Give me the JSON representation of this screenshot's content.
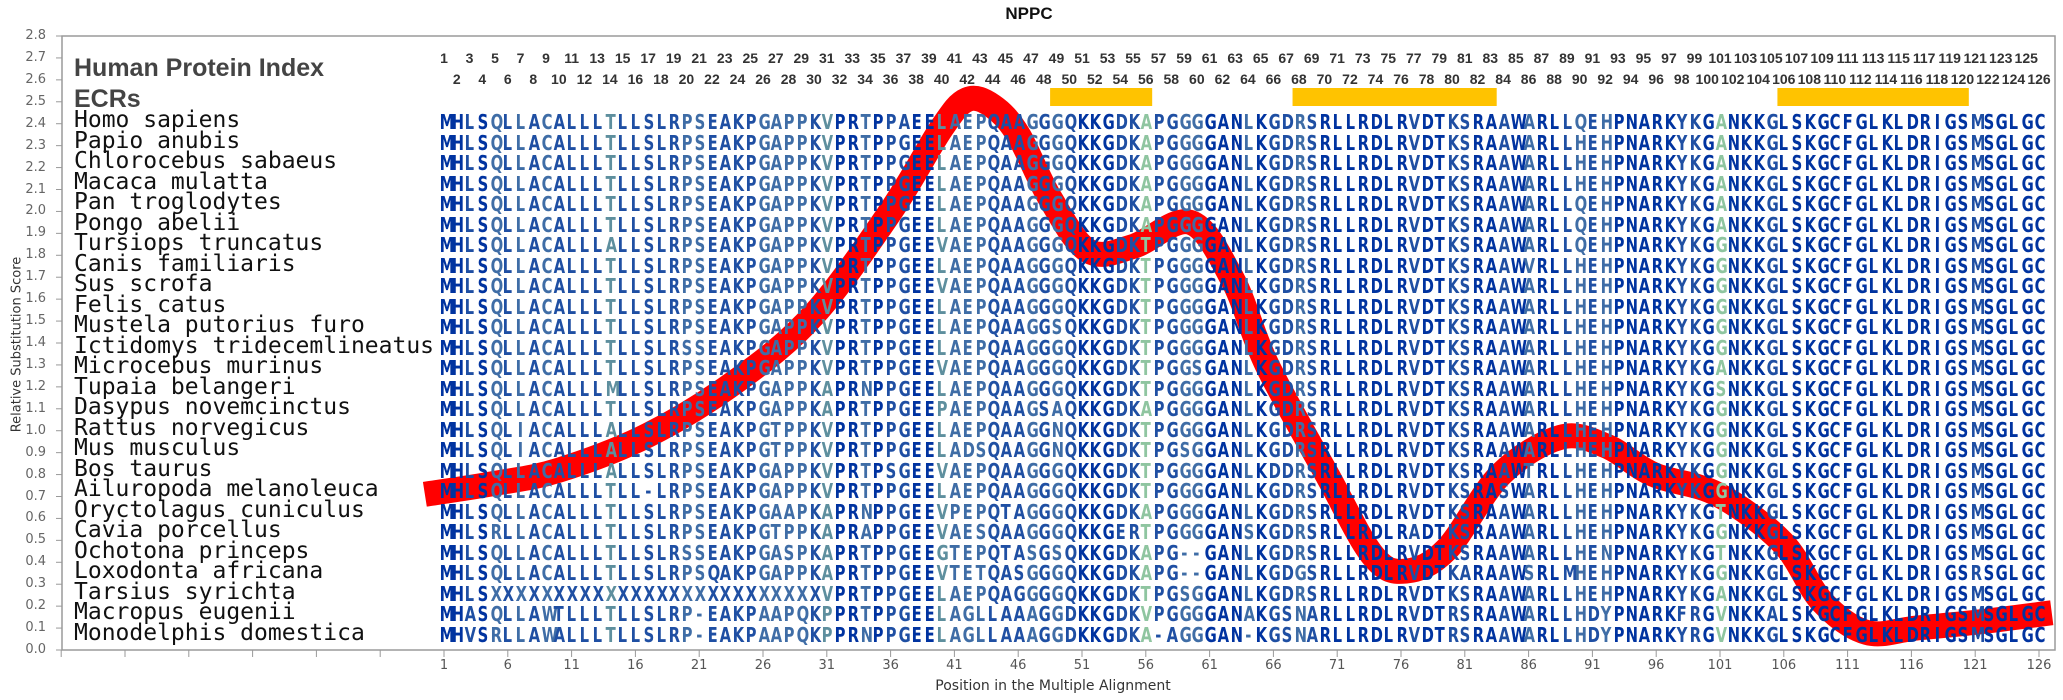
{
  "title": "NPPC",
  "header": {
    "protein_index_label": "Human Protein Index",
    "ecrs_label": "ECRs",
    "protein_index": [
      1,
      2,
      3,
      4,
      5,
      6,
      7,
      8,
      9,
      10,
      11,
      12,
      13,
      14,
      15,
      16,
      17,
      18,
      19,
      20,
      21,
      22,
      23,
      24,
      25,
      26,
      27,
      28,
      29,
      30,
      31,
      32,
      33,
      34,
      35,
      36,
      37,
      38,
      39,
      40,
      41,
      42,
      43,
      44,
      45,
      46,
      47,
      48,
      49,
      50,
      51,
      52,
      53,
      54,
      55,
      56,
      57,
      58,
      59,
      60,
      61,
      62,
      63,
      64,
      65,
      66,
      67,
      68,
      69,
      70,
      71,
      72,
      73,
      74,
      75,
      76,
      77,
      78,
      79,
      80,
      81,
      82,
      83,
      84,
      85,
      86,
      87,
      88,
      89,
      90,
      91,
      92,
      93,
      94,
      95,
      96,
      97,
      98,
      99,
      100,
      101,
      102,
      103,
      104,
      105,
      106,
      107,
      108,
      109,
      110,
      111,
      112,
      113,
      114,
      115,
      116,
      117,
      118,
      119,
      120,
      121,
      122,
      123,
      124,
      125,
      126
    ]
  },
  "ecrs": [
    {
      "start": 49,
      "end": 56
    },
    {
      "start": 68,
      "end": 83
    },
    {
      "start": 106,
      "end": 120
    }
  ],
  "colors": {
    "ecr": "#ffc300",
    "curve": "#ff0000",
    "conservation": [
      "#0033a0",
      "#1f4fa3",
      "#3f6da6",
      "#5e8f9e",
      "#8fc5a0"
    ]
  },
  "alignment": {
    "species": [
      {
        "name": "Homo sapiens",
        "sequence": "MHLSQLLACALLLTLLSLRPSEAKPGAPPKVPRTPPAEELAEPQAAGGGQKKGDKAPGGGGANLKGDRSRLLRDLRVDTKSRAAWARLLQEHPNARKYKGANKKGLSKGCFGLKLDRIGSMSGLGC"
      },
      {
        "name": "Papio anubis",
        "sequence": "MHLSQLLACALLLTLLSLRPSEAKPGAPPKVPRTPPGEELAEPQAAGGGQKKGDKAPGGGGANLKGDRSRLLRDLRVDTKSRAAWARLLHEHPNARKYKGANKKGLSKGCFGLKLDRIGSMSGLGC"
      },
      {
        "name": "Chlorocebus sabaeus",
        "sequence": "MHLSQLLACALLLTLLSLRPSEAKPGAPPKVPRTPPGEELAEPQAAGGGQKKGDKAPGGGGANLKGDRSRLLRDLRVDTKSRAAWARLLHEHPNARKYKGANKKGLSKGCFGLKLDRIGSMSGLGC"
      },
      {
        "name": "Macaca mulatta",
        "sequence": "MHLSQLLACALLLTLLSLRPSEAKPGAPPKVPRTPPGEELAEPQAAGGGQKKGDKAPGGGGANLKGDRSRLLRDLRVDTKSRAAWARLLHEHPNARKYKGANKKGLSKGCFGLKLDRIGSMSGLGC"
      },
      {
        "name": "Pan troglodytes",
        "sequence": "MHLSQLLACALLLTLLSLRPSEAKPGAPPKVPRTPPGEELAEPQAAGGGQKKGDKAPGGGGANLKGDRSRLLRDLRVDTKSRAAWARLLQEHPNARKYKGANKKGLSKGCFGLKLDRIGSMSGLGC"
      },
      {
        "name": "Pongo abelii",
        "sequence": "MHLSQLLACALLLTLLSLRPSEAKPGAPPKVPRTPPGEELAEPQAAGGGQKKGDKAPGGGGANLKGDRSRLLRDLRVDTKSRAAWARLLQEHPNARKYKGANKKGLSKGCFGLKLDRIGSMSGLGC"
      },
      {
        "name": "Tursiops truncatus",
        "sequence": "MHLSQLLACALLLALLSLRPSEAKPGAPPKVPRTPPGEEVAEPQAAGGGQKKGDKTPGGGGANLKGDRSRLLRDLRVDTKSRAAWARLLQEHPNARKYKGGNKKGLSKGCFGLKLDRIGSMSGLGC"
      },
      {
        "name": "Canis familiaris",
        "sequence": "MHLSQLLACALLLTLLSLRPSEAKPGAPPKVPRTPPGEELAEPQAAGGGQKKGDKTPGGGGANLKGDRSRLLRDLRVDTKSRAAWVRLLHEHPNARKYKGGNKKGLSKGCFGLKLDRIGSMSGLGC"
      },
      {
        "name": "Sus scrofa",
        "sequence": "MHLSQLLACALLLTLLSLRPSEAKPGAPPKVPRTPPGEEVAEPQAAGGGQKKGDKTPGGGGANLKGDRSRLLRDLRVDTKSRAAWARLLHEHPNARKYKGGNKKGLSKGCFGLKLDRIGSMSGLGC"
      },
      {
        "name": "Felis catus",
        "sequence": "MHLSQLLACALLLTLLSLRPSEAKPGAPPKVPRTPPGEELAEPQAAGGGQKKGDKTPGGGGANLKGDRSRLLRDLRVDTKSRAAWARLLHEHPNARKYKGGNKKGLSKGCFGLKLDRIGSMSGLGC"
      },
      {
        "name": "Mustela putorius furo",
        "sequence": "MHLSQLLACALLLTLLSLRPSEAKPGAPPKVPRTPPGEELAEPQAAGGSQKKGDKTPGGGGANLKGDRSRLLRDLRVDTKSRAAWARLLHEHPNARKYKGGNKKGLSKGCFGLKLDRIGSMSGLGC"
      },
      {
        "name": "Ictidomys tridecemlineatus",
        "sequence": "MHLSQLLACALLLTLLSLRSSEAKPGAPPKVPRTPPGEELAEPQAAGGGQKKGDKTPGGGGANLKGDRSRLLRDLRVDTKSRAAWARLLHEHPNARKYKGGNKKGLSKGCFGLKLDRIGSMSGLGC"
      },
      {
        "name": "Microcebus murinus",
        "sequence": "MHLSQLLACALLLTLLSLRPSEAKPGAPPKVPRTPPGEEVAEPQAAGGGQKKGDKTPGGSGANLKGDRSRLLRDLRVDTKSRAAWARLLHEHPNARKYKGANKKGLSKGCFGLKLDRIGSMSGLGC"
      },
      {
        "name": "Tupaia belangeri",
        "sequence": "MHLSQLLACALLLMLLSLRPSEAKPGAPPKAPRNPPGEELAEPQAAGGGQKKGDKTPGGGGANLKGDRSRLLRDLRVDTKSRAAWARLLHEHPNARKYKGSNKKGLSKGCFGLKLDRIGSMSGLGC"
      },
      {
        "name": "Dasypus novemcinctus",
        "sequence": "MHLSQLLACALLLTLLSLRPSEAKPGAPPKAPRTPPGEEPAEPQAAGSAQKKGDKAPGGGGANLKGDRSRLLRDLRVDTKSRAAWARLLHEHPNARKYKGGNKKGLSKGCFGLKLDRIGSMSGLGC"
      },
      {
        "name": "Rattus norvegicus",
        "sequence": "MHLSQLIACALLLALLSLRPSEAKPGTPPKVPRTPPGEELAEPQAAGGNQKKGDKTPGGGGANLKGDRSRLLRDLRVDTKSRAAWARLLHEHPNARKYKGGNKKGLSKGCFGLKLDRIGSMSGLGC"
      },
      {
        "name": "Mus musculus",
        "sequence": "MHLSQLIACALLLALLSLRPSEAKPGTPPKVPRTPPGEELADSQAAGGNQKKGDKTPGSGGANLKGDRSRLLRDLRVDTKSRAAWARLLHEHPNARKYKGGNKKGLSKGCFGLKLDRIGSMSGLGC"
      },
      {
        "name": "Bos taurus",
        "sequence": "MHLSQLLACALLLALLSLRPSEAKPGAPPKVPRTPSGEEVAEPQAAGGGQKKGDKTPGGGGANLKDDRSRLLRDLRVDTKSRAAWTRLLHEHPNARKYKGGNKKGLSKGCFGLKLDRIGSMSGLGC"
      },
      {
        "name": "Ailuropoda melanoleuca",
        "sequence": "MHLSQLLACALLLTLL-LRPSEAKPGAPPKVPRTPPGEELAEPQAAGGGQKKGDKTPGGGGANLKGDRSRLLRDLRVDTKSRASWARLLHEHPNARKYKGGNKKGLSKGCFGLKLDRIGSMSGLGC"
      },
      {
        "name": "Oryctolagus cuniculus",
        "sequence": "MHLSQLLACALLLTLLSLRPSEAKPGAAPKAPRNPPGEEVPEPQTAGGGQKKGDKAPGGGGANLKGDRSRLLRDLRVDTKSRAAWARLLHEHPNARKYKGTNKKGLSKGCFGLKLDRIGSMSGLGC"
      },
      {
        "name": "Cavia porcellus",
        "sequence": "MHLSRLLACALLLTLLSLRPSEAKPGTPPKAPRAPPGEEVAESQAAGGGQKKGERTPGGGGANSKGDRSRLLRDLRADTKSRAAWARLLHEHPNARKYKGGNKKGLSKGCFGLKLDRIGSMSGLGC"
      },
      {
        "name": "Ochotona princeps",
        "sequence": "MHLSQLLACALLLTLLSLRSSEAKPGASPKAPRTPPGEEGTEPQTASGSQKKGDKAPG--GANLKGDRSRLLRDLRVDTKSRAAWARLLHENPNARKYKGTNKKGLSKGCFGLKLDRIGSMSGLGC"
      },
      {
        "name": "Loxodonta africana",
        "sequence": "MHLSQLLACALLLTLLSLRPSQAKPGAPPKAPRTPPGEEVTETQASGGGQKKGDKAPG--GANLKGDGSRLLRDLRVDTKARAAWSRLMHEHPNARKYKGGNKKGLSKGCFGLKLDRIGSRSGLGC"
      },
      {
        "name": "Tarsius syrichta",
        "sequence": "MHLSXXXXXXXXXXXXXXXXXXXXXXXXXXVPRTPPGEELAEPQAGGGGQKKGDKTPGSGGANLKGDRSRLLRDLRVDTKSRAAWARLLHEHPNARKYKGANKKGLSKGCFGLKLDRIGSMSGLGC"
      },
      {
        "name": "Macropus eugenii",
        "sequence": "MHASQLLAWTLLLTLLSLRP-EAKPAAPQKPPRTPPGEELAGLLAAAGGDKKGDKVPGGGGANAKGSNARLLRDLRVDTRSRAAWARLLHDYPNARKFRGVNKKALSKGCFGLKLDRIGSMSGLGC"
      },
      {
        "name": "Monodelphis domestica",
        "sequence": "MHVSRLLAWALLLTLLSLRP-EAKPAAPQKPPRNPPGEELAGLLAAAGGDKKGDKA-AGGGAN-KGSNARLLRDLRVDTRSRAAWARLLHDYPNARKYRGVNKKGLSKGCFGLKLDRIGSMSGLGC"
      }
    ]
  },
  "chart_data": {
    "type": "line",
    "title": "NPPC",
    "xlabel": "Position in the Multiple Alignment",
    "ylabel": "Relative Substitution Score",
    "ylim": [
      0,
      2.8
    ],
    "yticks": [
      "0.0",
      "0.1",
      "0.2",
      "0.3",
      "0.4",
      "0.5",
      "0.6",
      "0.7",
      "0.8",
      "0.9",
      "1.0",
      "1.1",
      "1.2",
      "1.3",
      "1.4",
      "1.5",
      "1.6",
      "1.7",
      "1.8",
      "1.9",
      "2.0",
      "2.1",
      "2.2",
      "2.3",
      "2.4",
      "2.5",
      "2.6",
      "2.7",
      "2.8"
    ],
    "xticks": [
      "1",
      "6",
      "11",
      "16",
      "21",
      "26",
      "31",
      "36",
      "41",
      "46",
      "51",
      "56",
      "61",
      "66",
      "71",
      "76",
      "81",
      "86",
      "91",
      "96",
      "101",
      "106",
      "111",
      "116",
      "121",
      "126"
    ],
    "grid": false,
    "series": [
      {
        "x": [
          -0.5,
          5,
          10,
          17,
          24,
          30,
          36,
          40,
          42,
          44,
          46,
          48.5,
          51.5,
          55,
          59.5,
          62.8,
          65.5,
          70.2,
          73.8,
          76.4,
          79.6,
          83.8,
          88.5,
          92.1,
          95.8,
          100.8,
          105.9,
          109,
          112.5,
          116.4,
          121.6,
          127
        ],
        "y": [
          0.71,
          0.76,
          0.82,
          0.98,
          1.23,
          1.53,
          2.0,
          2.38,
          2.51,
          2.48,
          2.35,
          2.06,
          1.82,
          1.84,
          1.95,
          1.69,
          1.3,
          0.8,
          0.43,
          0.36,
          0.46,
          0.8,
          0.97,
          0.93,
          0.8,
          0.71,
          0.49,
          0.22,
          0.08,
          0.1,
          0.13,
          0.17
        ]
      }
    ]
  }
}
